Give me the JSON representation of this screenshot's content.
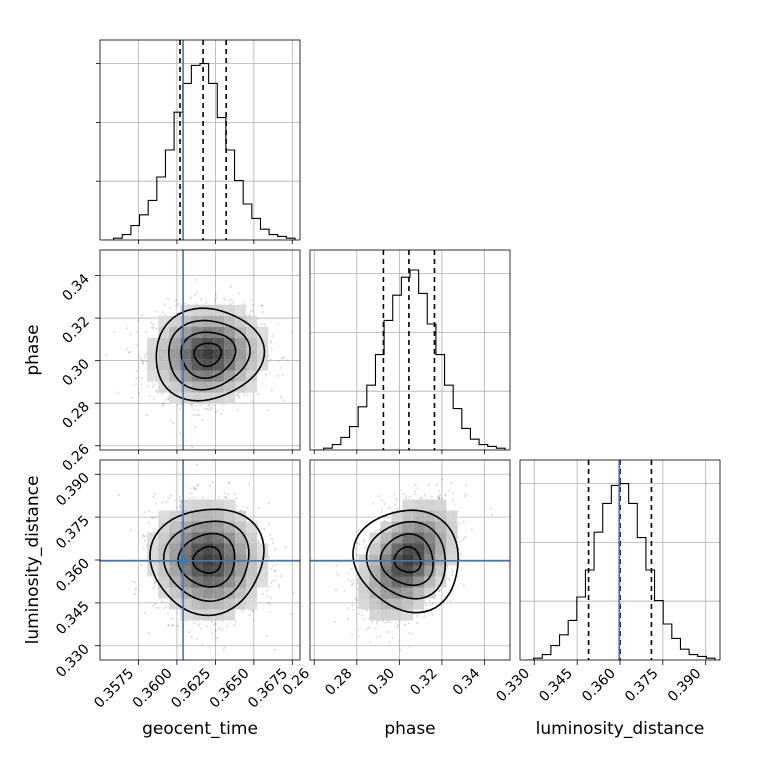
{
  "chart_data": {
    "type": "corner",
    "title": "",
    "parameters": [
      "geocent_time",
      "phase",
      "luminosity_distance"
    ],
    "grid": true,
    "truth_color": "#4477aa",
    "axes": {
      "geocent_time": {
        "label": "geocent_time",
        "range": [
          0.355,
          0.368
        ],
        "ticks": [
          0.3575,
          0.36,
          0.3625,
          0.365,
          0.3675
        ],
        "tick_labels": [
          "0.3575",
          "0.3600",
          "0.3625",
          "0.3650",
          "0.3675"
        ],
        "truth": 0.3604,
        "quantiles": [
          0.3602,
          0.3617,
          0.3632
        ]
      },
      "phase": {
        "label": "phase",
        "range": [
          0.258,
          0.352
        ],
        "ticks": [
          0.26,
          0.28,
          0.3,
          0.32,
          0.34
        ],
        "tick_labels": [
          "0.26",
          "0.28",
          "0.30",
          "0.32",
          "0.34"
        ],
        "truth": null,
        "quantiles": [
          0.2925,
          0.3045,
          0.3165
        ]
      },
      "luminosity_distance": {
        "label": "luminosity_distance",
        "range": [
          0.325,
          0.395
        ],
        "ticks": [
          0.33,
          0.345,
          0.36,
          0.375,
          0.39
        ],
        "tick_labels": [
          "0.330",
          "0.345",
          "0.360",
          "0.375",
          "0.390"
        ],
        "truth": 0.3597,
        "quantiles": [
          0.349,
          0.36,
          0.371
        ]
      }
    },
    "histograms": {
      "geocent_time": [
        0,
        0.01,
        0.03,
        0.08,
        0.14,
        0.22,
        0.35,
        0.5,
        0.71,
        0.87,
        0.97,
        0.98,
        0.87,
        0.68,
        0.5,
        0.33,
        0.2,
        0.12,
        0.06,
        0.03,
        0.02,
        0.01
      ],
      "phase": [
        0,
        0.01,
        0.03,
        0.07,
        0.13,
        0.24,
        0.36,
        0.53,
        0.72,
        0.86,
        0.96,
        1.0,
        0.87,
        0.7,
        0.53,
        0.36,
        0.23,
        0.12,
        0.06,
        0.03,
        0.02,
        0.01
      ],
      "luminosity_distance": [
        0,
        0.01,
        0.03,
        0.08,
        0.14,
        0.22,
        0.35,
        0.5,
        0.71,
        0.87,
        0.97,
        0.98,
        0.87,
        0.68,
        0.5,
        0.33,
        0.2,
        0.12,
        0.06,
        0.03,
        0.02,
        0.01
      ]
    },
    "pairs": [
      {
        "x": "geocent_time",
        "y": "phase",
        "mean": [
          0.362,
          0.303
        ],
        "sd": [
          0.00175,
          0.0108
        ],
        "corr": 0.05,
        "truth": [
          0.3604,
          null
        ]
      },
      {
        "x": "geocent_time",
        "y": "luminosity_distance",
        "mean": [
          0.362,
          0.36
        ],
        "sd": [
          0.0017,
          0.01
        ],
        "corr": -0.05,
        "truth": [
          0.3604,
          0.3597
        ]
      },
      {
        "x": "phase",
        "y": "luminosity_distance",
        "mean": [
          0.304,
          0.36
        ],
        "sd": [
          0.011,
          0.01
        ],
        "corr": 0.42,
        "truth": [
          null,
          0.3597
        ]
      }
    ]
  }
}
